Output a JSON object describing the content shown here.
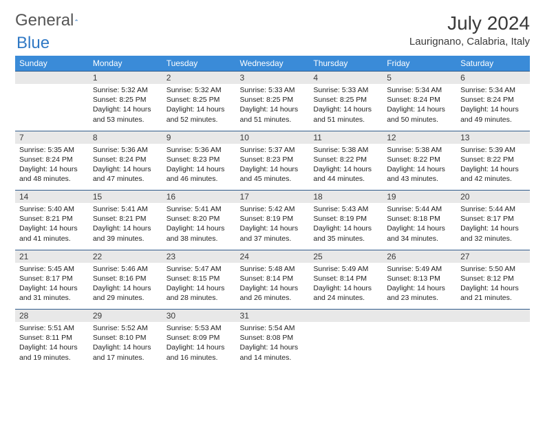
{
  "logo": {
    "text1": "General",
    "text2": "Blue"
  },
  "title": "July 2024",
  "location": "Laurignano, Calabria, Italy",
  "colors": {
    "header_bg": "#3a8bd8",
    "header_text": "#ffffff",
    "daynum_bg": "#e8e8e8",
    "border": "#2f5a8a",
    "logo_gray": "#555555",
    "logo_blue": "#2f78c4"
  },
  "fonts": {
    "title_size": 28,
    "location_size": 15,
    "dayheader_size": 12,
    "cell_size": 10.5
  },
  "day_headers": [
    "Sunday",
    "Monday",
    "Tuesday",
    "Wednesday",
    "Thursday",
    "Friday",
    "Saturday"
  ],
  "weeks": [
    {
      "nums": [
        "",
        "1",
        "2",
        "3",
        "4",
        "5",
        "6"
      ],
      "cells": [
        null,
        {
          "sunrise": "5:32 AM",
          "sunset": "8:25 PM",
          "daylight": "14 hours and 53 minutes."
        },
        {
          "sunrise": "5:32 AM",
          "sunset": "8:25 PM",
          "daylight": "14 hours and 52 minutes."
        },
        {
          "sunrise": "5:33 AM",
          "sunset": "8:25 PM",
          "daylight": "14 hours and 51 minutes."
        },
        {
          "sunrise": "5:33 AM",
          "sunset": "8:25 PM",
          "daylight": "14 hours and 51 minutes."
        },
        {
          "sunrise": "5:34 AM",
          "sunset": "8:24 PM",
          "daylight": "14 hours and 50 minutes."
        },
        {
          "sunrise": "5:34 AM",
          "sunset": "8:24 PM",
          "daylight": "14 hours and 49 minutes."
        }
      ]
    },
    {
      "nums": [
        "7",
        "8",
        "9",
        "10",
        "11",
        "12",
        "13"
      ],
      "cells": [
        {
          "sunrise": "5:35 AM",
          "sunset": "8:24 PM",
          "daylight": "14 hours and 48 minutes."
        },
        {
          "sunrise": "5:36 AM",
          "sunset": "8:24 PM",
          "daylight": "14 hours and 47 minutes."
        },
        {
          "sunrise": "5:36 AM",
          "sunset": "8:23 PM",
          "daylight": "14 hours and 46 minutes."
        },
        {
          "sunrise": "5:37 AM",
          "sunset": "8:23 PM",
          "daylight": "14 hours and 45 minutes."
        },
        {
          "sunrise": "5:38 AM",
          "sunset": "8:22 PM",
          "daylight": "14 hours and 44 minutes."
        },
        {
          "sunrise": "5:38 AM",
          "sunset": "8:22 PM",
          "daylight": "14 hours and 43 minutes."
        },
        {
          "sunrise": "5:39 AM",
          "sunset": "8:22 PM",
          "daylight": "14 hours and 42 minutes."
        }
      ]
    },
    {
      "nums": [
        "14",
        "15",
        "16",
        "17",
        "18",
        "19",
        "20"
      ],
      "cells": [
        {
          "sunrise": "5:40 AM",
          "sunset": "8:21 PM",
          "daylight": "14 hours and 41 minutes."
        },
        {
          "sunrise": "5:41 AM",
          "sunset": "8:21 PM",
          "daylight": "14 hours and 39 minutes."
        },
        {
          "sunrise": "5:41 AM",
          "sunset": "8:20 PM",
          "daylight": "14 hours and 38 minutes."
        },
        {
          "sunrise": "5:42 AM",
          "sunset": "8:19 PM",
          "daylight": "14 hours and 37 minutes."
        },
        {
          "sunrise": "5:43 AM",
          "sunset": "8:19 PM",
          "daylight": "14 hours and 35 minutes."
        },
        {
          "sunrise": "5:44 AM",
          "sunset": "8:18 PM",
          "daylight": "14 hours and 34 minutes."
        },
        {
          "sunrise": "5:44 AM",
          "sunset": "8:17 PM",
          "daylight": "14 hours and 32 minutes."
        }
      ]
    },
    {
      "nums": [
        "21",
        "22",
        "23",
        "24",
        "25",
        "26",
        "27"
      ],
      "cells": [
        {
          "sunrise": "5:45 AM",
          "sunset": "8:17 PM",
          "daylight": "14 hours and 31 minutes."
        },
        {
          "sunrise": "5:46 AM",
          "sunset": "8:16 PM",
          "daylight": "14 hours and 29 minutes."
        },
        {
          "sunrise": "5:47 AM",
          "sunset": "8:15 PM",
          "daylight": "14 hours and 28 minutes."
        },
        {
          "sunrise": "5:48 AM",
          "sunset": "8:14 PM",
          "daylight": "14 hours and 26 minutes."
        },
        {
          "sunrise": "5:49 AM",
          "sunset": "8:14 PM",
          "daylight": "14 hours and 24 minutes."
        },
        {
          "sunrise": "5:49 AM",
          "sunset": "8:13 PM",
          "daylight": "14 hours and 23 minutes."
        },
        {
          "sunrise": "5:50 AM",
          "sunset": "8:12 PM",
          "daylight": "14 hours and 21 minutes."
        }
      ]
    },
    {
      "nums": [
        "28",
        "29",
        "30",
        "31",
        "",
        "",
        ""
      ],
      "cells": [
        {
          "sunrise": "5:51 AM",
          "sunset": "8:11 PM",
          "daylight": "14 hours and 19 minutes."
        },
        {
          "sunrise": "5:52 AM",
          "sunset": "8:10 PM",
          "daylight": "14 hours and 17 minutes."
        },
        {
          "sunrise": "5:53 AM",
          "sunset": "8:09 PM",
          "daylight": "14 hours and 16 minutes."
        },
        {
          "sunrise": "5:54 AM",
          "sunset": "8:08 PM",
          "daylight": "14 hours and 14 minutes."
        },
        null,
        null,
        null
      ]
    }
  ],
  "labels": {
    "sunrise": "Sunrise:",
    "sunset": "Sunset:",
    "daylight": "Daylight:"
  }
}
